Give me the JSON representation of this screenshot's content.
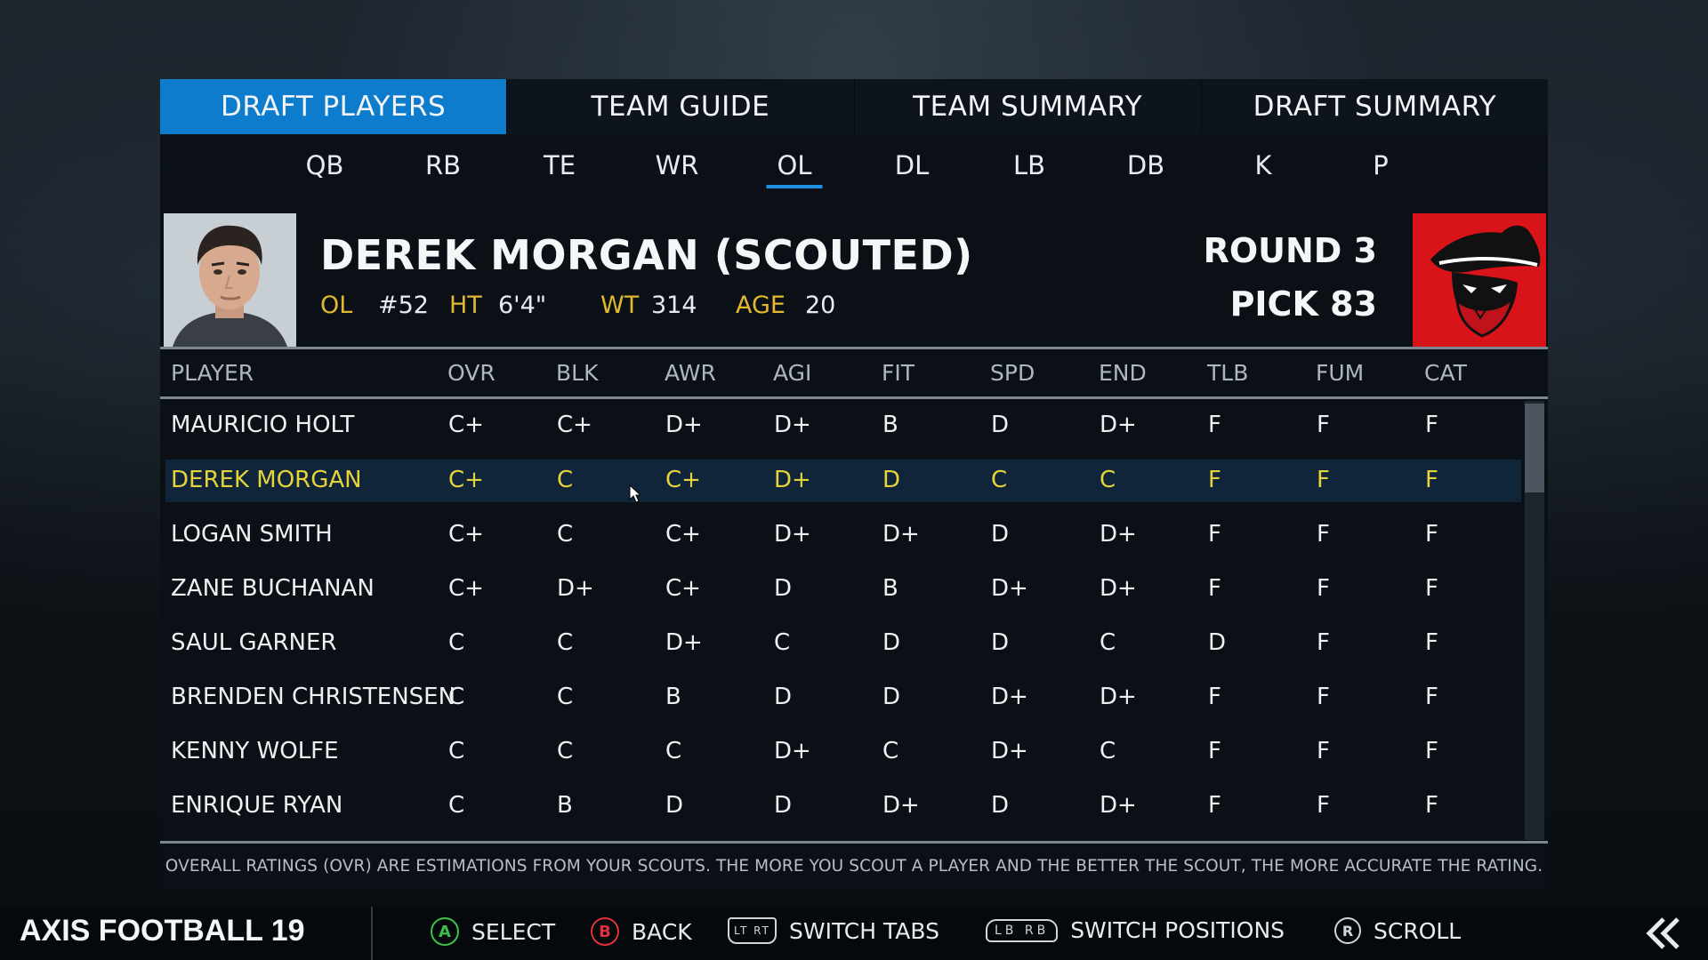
{
  "tabs": [
    {
      "label": "DRAFT PLAYERS",
      "active": true
    },
    {
      "label": "TEAM GUIDE",
      "active": false
    },
    {
      "label": "TEAM SUMMARY",
      "active": false
    },
    {
      "label": "DRAFT SUMMARY",
      "active": false
    }
  ],
  "positions": [
    "QB",
    "RB",
    "TE",
    "WR",
    "OL",
    "DL",
    "LB",
    "DB",
    "K",
    "P"
  ],
  "active_position": "OL",
  "profile": {
    "name": "DEREK MORGAN (SCOUTED)",
    "position": "OL",
    "number": "#52",
    "ht_label": "HT",
    "height": "6'4\"",
    "wt_label": "WT",
    "weight": "314",
    "age_label": "AGE",
    "age": "20",
    "round": "ROUND 3",
    "pick": "PICK 83"
  },
  "columns": [
    "PLAYER",
    "OVR",
    "BLK",
    "AWR",
    "AGI",
    "FIT",
    "SPD",
    "END",
    "TLB",
    "FUM",
    "CAT"
  ],
  "rows": [
    {
      "name": "MAURICIO HOLT",
      "ovr": "C+",
      "blk": "C+",
      "awr": "D+",
      "agi": "D+",
      "fit": "B",
      "spd": "D",
      "end": "D+",
      "tlb": "F",
      "fum": "F",
      "cat": "F"
    },
    {
      "name": "DEREK MORGAN",
      "ovr": "C+",
      "blk": "C",
      "awr": "C+",
      "agi": "D+",
      "fit": "D",
      "spd": "C",
      "end": "C",
      "tlb": "F",
      "fum": "F",
      "cat": "F"
    },
    {
      "name": "LOGAN SMITH",
      "ovr": "C+",
      "blk": "C",
      "awr": "C+",
      "agi": "D+",
      "fit": "D+",
      "spd": "D",
      "end": "D+",
      "tlb": "F",
      "fum": "F",
      "cat": "F"
    },
    {
      "name": "ZANE BUCHANAN",
      "ovr": "C+",
      "blk": "D+",
      "awr": "C+",
      "agi": "D",
      "fit": "B",
      "spd": "D+",
      "end": "D+",
      "tlb": "F",
      "fum": "F",
      "cat": "F"
    },
    {
      "name": "SAUL GARNER",
      "ovr": "C",
      "blk": "C",
      "awr": "D+",
      "agi": "C",
      "fit": "D",
      "spd": "D",
      "end": "C",
      "tlb": "D",
      "fum": "F",
      "cat": "F"
    },
    {
      "name": "BRENDEN CHRISTENSEN",
      "ovr": "C",
      "blk": "C",
      "awr": "B",
      "agi": "D",
      "fit": "D",
      "spd": "D+",
      "end": "D+",
      "tlb": "F",
      "fum": "F",
      "cat": "F"
    },
    {
      "name": "KENNY WOLFE",
      "ovr": "C",
      "blk": "C",
      "awr": "C",
      "agi": "D+",
      "fit": "C",
      "spd": "D+",
      "end": "C",
      "tlb": "F",
      "fum": "F",
      "cat": "F"
    },
    {
      "name": "ENRIQUE RYAN",
      "ovr": "C",
      "blk": "B",
      "awr": "D",
      "agi": "D",
      "fit": "D+",
      "spd": "D",
      "end": "D+",
      "tlb": "F",
      "fum": "F",
      "cat": "F"
    }
  ],
  "selected_row": 1,
  "note": "OVERALL RATINGS (OVR) ARE ESTIMATIONS FROM YOUR  SCOUTS. THE MORE YOU SCOUT A PLAYER AND THE BETTER THE SCOUT, THE MORE ACCURATE THE RATING.",
  "footer": {
    "brand": "AXIS FOOTBALL 19",
    "hints": [
      {
        "icon": "a-button-icon",
        "glyph": "A",
        "label": "SELECT"
      },
      {
        "icon": "b-button-icon",
        "glyph": "B",
        "label": "BACK"
      },
      {
        "icon": "lt-rt-triggers-icon",
        "glyph": "LT RT",
        "label": "SWITCH TABS"
      },
      {
        "icon": "lb-rb-bumpers-icon",
        "glyph": "LB RB",
        "label": "SWITCH POSITIONS"
      },
      {
        "icon": "right-stick-icon",
        "glyph": "R",
        "label": "SCROLL"
      }
    ]
  },
  "colors": {
    "accent": "#0e7ccc",
    "highlight": "#e5d33a",
    "label": "#e2b830",
    "logo_red": "#d8141a"
  }
}
